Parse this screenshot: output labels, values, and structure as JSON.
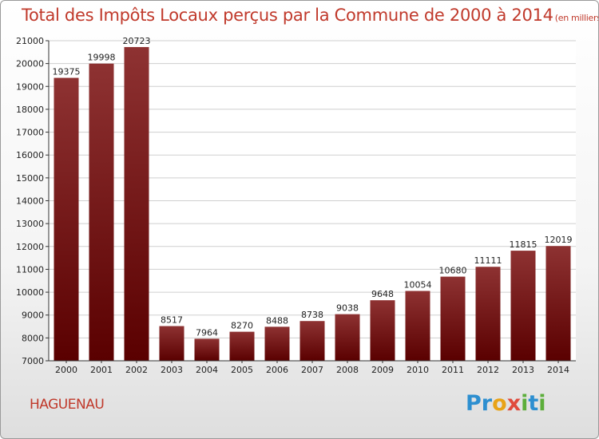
{
  "title": {
    "main": "Total des Impôts Locaux perçus par la Commune de 2000 à 2014",
    "unit": "(en milliers d'€)"
  },
  "commune": "HAGUENAU",
  "logo": {
    "letters": [
      {
        "ch": "P",
        "color": "#2d8fd0"
      },
      {
        "ch": "r",
        "color": "#2d8fd0"
      },
      {
        "ch": "o",
        "color": "#e8a317"
      },
      {
        "ch": "x",
        "color": "#e04b3c"
      },
      {
        "ch": "i",
        "color": "#5cae3b"
      },
      {
        "ch": "t",
        "color": "#2d8fd0"
      },
      {
        "ch": "i",
        "color": "#5cae3b"
      }
    ]
  },
  "colors": {
    "bar_top": "#8e3232",
    "bar_bottom": "#5a0000",
    "accent": "#c0392b"
  },
  "chart_data": {
    "type": "bar",
    "categories": [
      "2000",
      "2001",
      "2002",
      "2003",
      "2004",
      "2005",
      "2006",
      "2007",
      "2008",
      "2009",
      "2010",
      "2011",
      "2012",
      "2013",
      "2014"
    ],
    "values": [
      19375,
      19998,
      20723,
      8517,
      7964,
      8270,
      8488,
      8738,
      9038,
      9648,
      10054,
      10680,
      11111,
      11815,
      12019
    ],
    "value_labels": [
      "19375",
      "19998",
      "20723",
      "8517",
      "7964",
      "8270",
      "8488",
      "8738",
      "9038",
      "9648",
      "10054",
      "10680",
      "11111",
      "11815",
      "12019"
    ],
    "yticks": [
      7000,
      8000,
      9000,
      10000,
      11000,
      12000,
      13000,
      14000,
      15000,
      16000,
      17000,
      18000,
      19000,
      20000,
      21000
    ],
    "ytick_labels": [
      "7000",
      "8000",
      "9000",
      "10000",
      "11000",
      "12000",
      "13000",
      "14000",
      "15000",
      "16000",
      "17000",
      "18000",
      "19000",
      "20000",
      "21000"
    ],
    "ylim": [
      7000,
      21000
    ],
    "grid": true
  }
}
